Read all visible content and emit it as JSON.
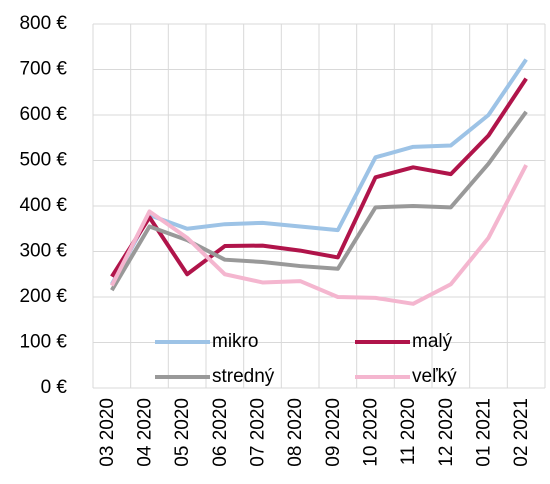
{
  "chart_data": {
    "type": "line",
    "categories": [
      "03 2020",
      "04 2020",
      "05 2020",
      "06 2020",
      "07 2020",
      "08 2020",
      "09 2020",
      "10 2020",
      "11 2020",
      "12 2020",
      "01 2021",
      "02 2021"
    ],
    "series": [
      {
        "name": "mikro",
        "color": "#9dc3e6",
        "values": [
          228,
          380,
          350,
          360,
          363,
          355,
          347,
          507,
          530,
          533,
          600,
          722
        ]
      },
      {
        "name": "malý",
        "color": "#b0144a",
        "values": [
          245,
          375,
          250,
          312,
          313,
          302,
          287,
          463,
          485,
          470,
          555,
          680
        ]
      },
      {
        "name": "stredný",
        "color": "#999999",
        "values": [
          215,
          355,
          325,
          282,
          277,
          268,
          262,
          397,
          400,
          397,
          493,
          607
        ]
      },
      {
        "name": "veľký",
        "color": "#f4b6cf",
        "values": [
          225,
          388,
          330,
          250,
          232,
          235,
          200,
          198,
          185,
          228,
          330,
          490
        ]
      }
    ],
    "ylim": [
      0,
      800
    ],
    "yticks": [
      {
        "value": 0,
        "label": "0 €"
      },
      {
        "value": 100,
        "label": "100 €"
      },
      {
        "value": 200,
        "label": "200 €"
      },
      {
        "value": 300,
        "label": "300 €"
      },
      {
        "value": 400,
        "label": "400 €"
      },
      {
        "value": 500,
        "label": "500 €"
      },
      {
        "value": 600,
        "label": "600 €"
      },
      {
        "value": 700,
        "label": "700 €"
      },
      {
        "value": 800,
        "label": "800 €"
      }
    ],
    "grid": true
  }
}
